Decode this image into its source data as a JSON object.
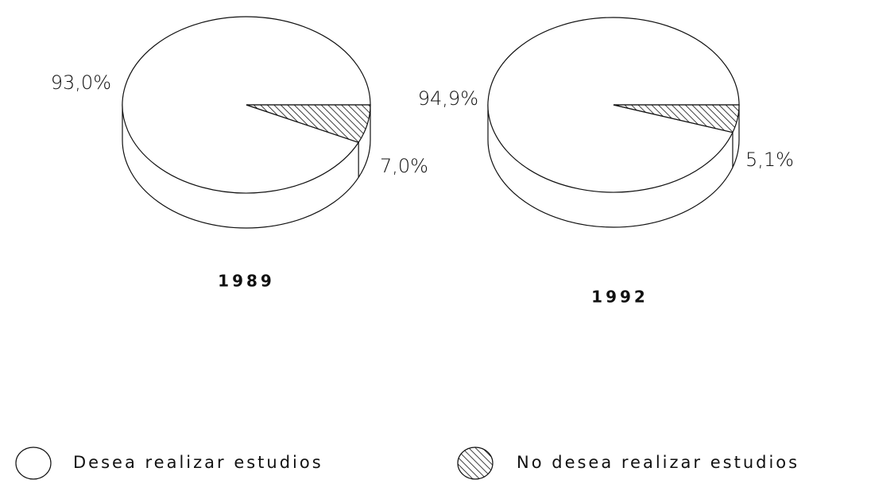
{
  "chart_data": [
    {
      "type": "pie",
      "title": "1989",
      "categories": [
        "Desea realizar estudios",
        "No desea realizar estudios"
      ],
      "values": [
        93.0,
        7.0
      ],
      "value_labels": [
        "93,0%",
        "7,0%"
      ],
      "patterns": [
        "none",
        "hatch"
      ]
    },
    {
      "type": "pie",
      "title": "1992",
      "categories": [
        "Desea realizar estudios",
        "No desea realizar estudios"
      ],
      "values": [
        94.9,
        5.1
      ],
      "value_labels": [
        "94,9%",
        "5,1%"
      ],
      "patterns": [
        "none",
        "hatch"
      ]
    }
  ]
}
